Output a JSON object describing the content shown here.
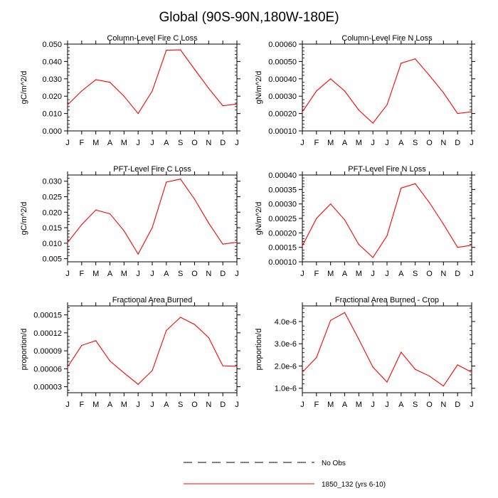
{
  "page": {
    "title": "Global (90S-90N,180W-180E)"
  },
  "legend": {
    "entries": [
      {
        "label": "No Obs",
        "style": "dashed",
        "color": "#000000"
      },
      {
        "label": "1850_132 (yrs 6-10)",
        "style": "solid",
        "color": "#ff0000"
      }
    ]
  },
  "months": [
    "J",
    "F",
    "M",
    "A",
    "M",
    "J",
    "J",
    "A",
    "S",
    "O",
    "N",
    "D",
    "J"
  ],
  "chart_data": [
    {
      "type": "line",
      "title": "Column-Level Fire C Loss",
      "ylabel": "gC/m^2/d",
      "ylim": [
        0,
        0.05
      ],
      "yticks": [
        0,
        0.01,
        0.02,
        0.03,
        0.04,
        0.05
      ],
      "ytick_labels": [
        "0.000",
        "0.010",
        "0.020",
        "0.030",
        "0.040",
        "0.050"
      ],
      "categories": [
        "J",
        "F",
        "M",
        "A",
        "M",
        "J",
        "J",
        "A",
        "S",
        "O",
        "N",
        "D",
        "J"
      ],
      "series": [
        {
          "name": "1850_132 (yrs 6-10)",
          "color": "#ff0000",
          "values": [
            0.015,
            0.023,
            0.0295,
            0.028,
            0.02,
            0.01,
            0.023,
            0.0465,
            0.0467,
            0.0355,
            0.0245,
            0.0145,
            0.0155
          ]
        }
      ]
    },
    {
      "type": "line",
      "title": "Column-Level Fire N Loss",
      "ylabel": "gN/m^2/d",
      "ylim": [
        0.0001,
        0.0006
      ],
      "yticks": [
        0.0001,
        0.0002,
        0.0003,
        0.0004,
        0.0005,
        0.0006
      ],
      "ytick_labels": [
        "0.00010",
        "0.00020",
        "0.00030",
        "0.00040",
        "0.00050",
        "0.00060"
      ],
      "categories": [
        "J",
        "F",
        "M",
        "A",
        "M",
        "J",
        "J",
        "A",
        "S",
        "O",
        "N",
        "D",
        "J"
      ],
      "series": [
        {
          "name": "1850_132 (yrs 6-10)",
          "color": "#ff0000",
          "values": [
            0.00021,
            0.00033,
            0.0004,
            0.00033,
            0.00022,
            0.000145,
            0.00025,
            0.00049,
            0.000515,
            0.00042,
            0.00032,
            0.0002,
            0.00021
          ]
        }
      ]
    },
    {
      "type": "line",
      "title": "PFT-Level Fire C Loss",
      "ylabel": "gC/m^2/d",
      "ylim": [
        0.004,
        0.032
      ],
      "yticks": [
        0.005,
        0.01,
        0.015,
        0.02,
        0.025,
        0.03
      ],
      "ytick_labels": [
        "0.005",
        "0.010",
        "0.015",
        "0.020",
        "0.025",
        "0.030"
      ],
      "categories": [
        "J",
        "F",
        "M",
        "A",
        "M",
        "J",
        "J",
        "A",
        "S",
        "O",
        "N",
        "D",
        "J"
      ],
      "series": [
        {
          "name": "1850_132 (yrs 6-10)",
          "color": "#ff0000",
          "values": [
            0.0102,
            0.016,
            0.0207,
            0.0195,
            0.014,
            0.0065,
            0.015,
            0.0297,
            0.0307,
            0.0242,
            0.0165,
            0.0097,
            0.0103
          ]
        }
      ]
    },
    {
      "type": "line",
      "title": "PFT-Level Fire N Loss",
      "ylabel": "gN/m^2/d",
      "ylim": [
        0.0001,
        0.0004
      ],
      "yticks": [
        0.0001,
        0.00015,
        0.0002,
        0.00025,
        0.0003,
        0.00035,
        0.0004
      ],
      "ytick_labels": [
        "0.00010",
        "0.00015",
        "0.00020",
        "0.00025",
        "0.00030",
        "0.00035",
        "0.00040"
      ],
      "categories": [
        "J",
        "F",
        "M",
        "A",
        "M",
        "J",
        "J",
        "A",
        "S",
        "O",
        "N",
        "D",
        "J"
      ],
      "series": [
        {
          "name": "1850_132 (yrs 6-10)",
          "color": "#ff0000",
          "values": [
            0.000155,
            0.00025,
            0.0003,
            0.000245,
            0.00016,
            0.000115,
            0.00019,
            0.000355,
            0.00037,
            0.000305,
            0.00023,
            0.00015,
            0.000157
          ]
        }
      ]
    },
    {
      "type": "line",
      "title": "Fractional Area Burned",
      "ylabel": "proportion/d",
      "ylim": [
        2e-05,
        0.000165
      ],
      "yticks": [
        3e-05,
        6e-05,
        9e-05,
        0.00012,
        0.00015
      ],
      "ytick_labels": [
        "0.00003",
        "0.00006",
        "0.00009",
        "0.00012",
        "0.00015"
      ],
      "categories": [
        "J",
        "F",
        "M",
        "A",
        "M",
        "J",
        "J",
        "A",
        "S",
        "O",
        "N",
        "D",
        "J"
      ],
      "series": [
        {
          "name": "1850_132 (yrs 6-10)",
          "color": "#ff0000",
          "values": [
            6.3e-05,
            9.9e-05,
            0.000107,
            7.3e-05,
            5.3e-05,
            3.4e-05,
            5.7e-05,
            0.000124,
            0.000146,
            0.000134,
            0.000112,
            6.5e-05,
            6.4e-05
          ]
        }
      ]
    },
    {
      "type": "line",
      "title": "Fractional Area Burned - Crop",
      "ylabel": "proportion/d",
      "ylim": [
        8e-07,
        4.7e-06
      ],
      "yticks": [
        1e-06,
        2e-06,
        3e-06,
        4e-06
      ],
      "ytick_labels": [
        "1.0e-6",
        "2.0e-6",
        "3.0e-6",
        "4.0e-6"
      ],
      "categories": [
        "J",
        "F",
        "M",
        "A",
        "M",
        "J",
        "J",
        "A",
        "S",
        "O",
        "N",
        "D",
        "J"
      ],
      "series": [
        {
          "name": "1850_132 (yrs 6-10)",
          "color": "#ff0000",
          "values": [
            1.72e-06,
            2.38e-06,
            4.05e-06,
            4.4e-06,
            3.2e-06,
            1.95e-06,
            1.28e-06,
            2.62e-06,
            1.85e-06,
            1.55e-06,
            1.1e-06,
            2.05e-06,
            1.72e-06
          ]
        }
      ]
    }
  ]
}
